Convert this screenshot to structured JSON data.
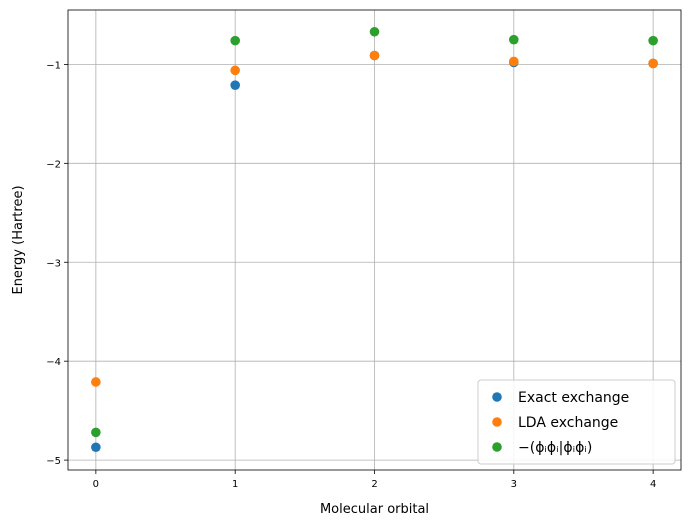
{
  "chart_data": {
    "type": "scatter",
    "title": "",
    "xlabel": "Molecular orbital",
    "ylabel": "Energy (Hartree)",
    "xlim": [
      -0.2,
      4.2
    ],
    "ylim": [
      -5.1,
      -0.45
    ],
    "xticks": [
      0,
      1,
      2,
      3,
      4
    ],
    "xtick_labels": [
      "0",
      "1",
      "2",
      "3",
      "4"
    ],
    "yticks": [
      -5,
      -4,
      -3,
      -2,
      -1
    ],
    "ytick_labels": [
      "−5",
      "−4",
      "−3",
      "−2",
      "−1"
    ],
    "grid": true,
    "legend_position": "lower-right",
    "series": [
      {
        "name": "Exact exchange",
        "color": "#1f77b4",
        "x": [
          0,
          1,
          2,
          3,
          4
        ],
        "y": [
          -4.87,
          -1.21,
          -0.91,
          -0.98,
          -0.99
        ]
      },
      {
        "name": "LDA exchange",
        "color": "#ff7f0e",
        "x": [
          0,
          1,
          2,
          3,
          4
        ],
        "y": [
          -4.21,
          -1.06,
          -0.91,
          -0.97,
          -0.99
        ]
      },
      {
        "name": "−(ϕᵢϕᵢ|ϕᵢϕᵢ)",
        "color": "#2ca02c",
        "x": [
          0,
          1,
          2,
          3,
          4
        ],
        "y": [
          -4.72,
          -0.76,
          -0.67,
          -0.75,
          -0.76
        ]
      }
    ]
  }
}
